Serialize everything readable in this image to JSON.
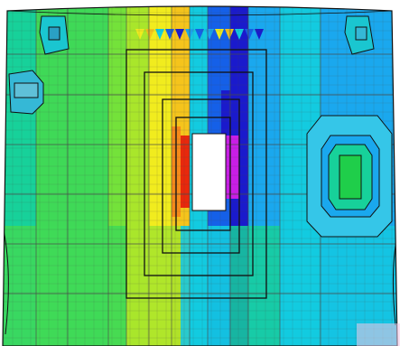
{
  "viewport": {
    "background": "#ffffff"
  },
  "fem_plot": {
    "description_hidden": "",
    "palette": {
      "red": "#e8280c",
      "orange": "#f78a1a",
      "yellow_orange": "#f5c41c",
      "yellow": "#f1ec1e",
      "yellow_green": "#a9e62b",
      "light_green": "#74e23a",
      "green": "#3fd957",
      "green_cyan": "#17d19a",
      "cyan": "#13cbe0",
      "sky": "#1aa8ee",
      "blue": "#1560e8",
      "deep_blue": "#1a1acc",
      "magenta": "#c81ee6",
      "mesh_line": "#4a4a4a",
      "outline": "#111111",
      "opening": "#ffffff"
    },
    "features": {
      "central_opening": {
        "fill": "#ffffff"
      },
      "right_reinforcement": {
        "inner_fill": "#1fce4a"
      },
      "left_small_fitting": {
        "fill": "#5fc0d8"
      },
      "top_left_fitting": {
        "fill": "#2aa0c4"
      },
      "top_right_fitting": {
        "fill": "#35b8d6"
      }
    },
    "icons": [
      "cylinder-shell-icon"
    ]
  }
}
